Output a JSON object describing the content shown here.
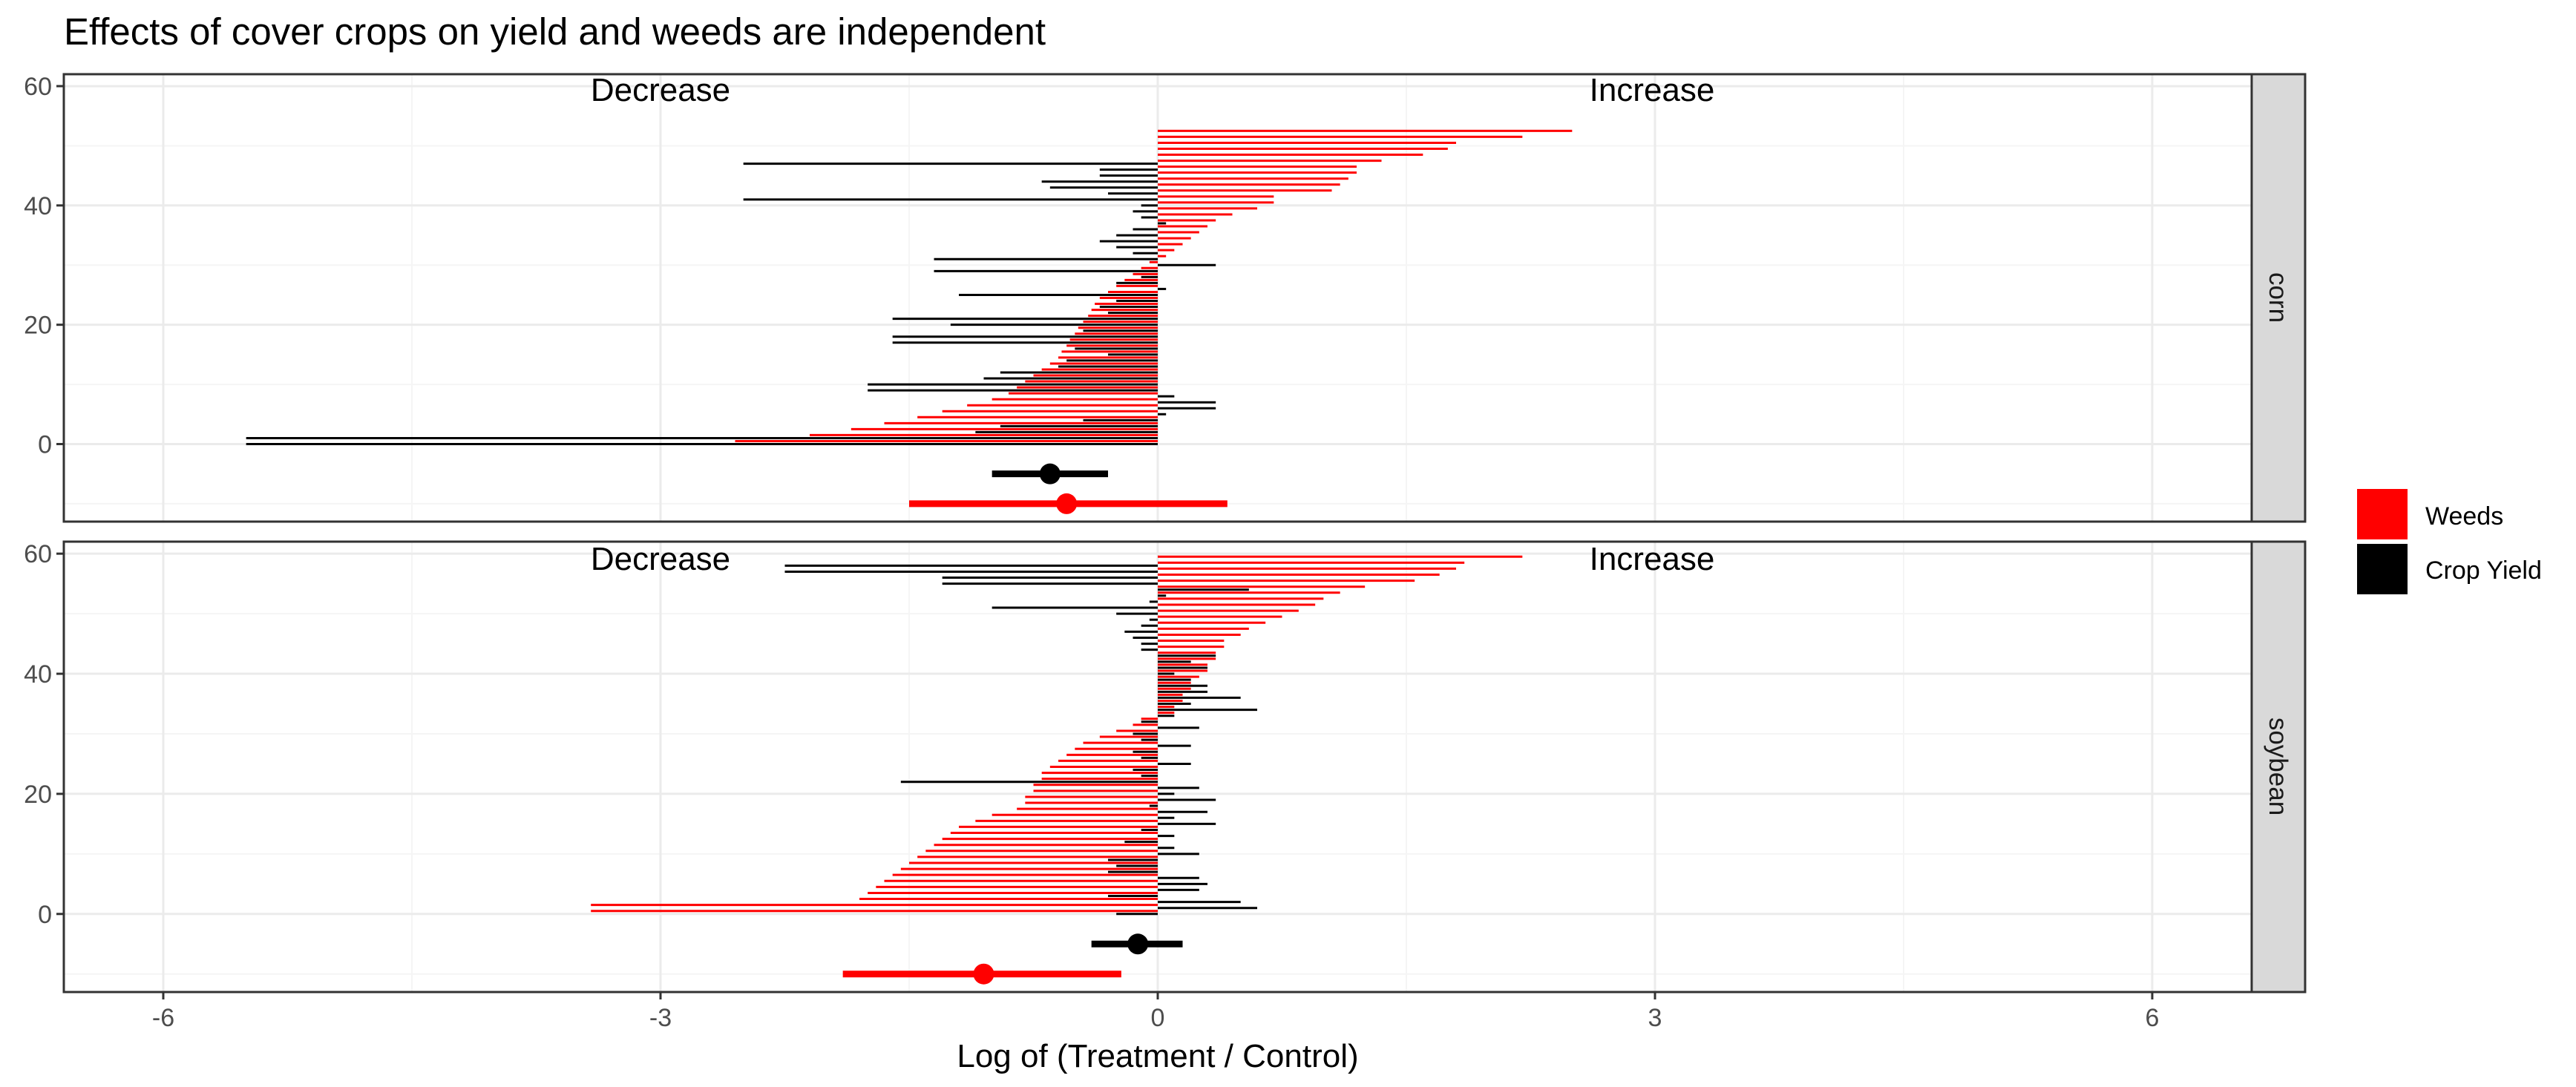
{
  "colors": {
    "weeds": "#ff0000",
    "yield": "#000000",
    "grid_major": "#ebebeb",
    "grid_minor": "#f5f5f5",
    "strip": "#d9d9d9",
    "border": "#333333"
  },
  "chart_data": {
    "type": "forest",
    "title": "Effects of cover crops on yield and weeds are independent",
    "xlabel": "Log of (Treatment / Control)",
    "ylabel": "",
    "xlim": [
      -6.6,
      6.6
    ],
    "x_ticks": [
      -6,
      -3,
      0,
      3,
      6
    ],
    "y_ticks": [
      0,
      20,
      40,
      60
    ],
    "annotations": {
      "left": "Decrease",
      "right": "Increase"
    },
    "legend": {
      "position": "right",
      "entries": [
        {
          "key": "weeds",
          "label": "Weeds"
        },
        {
          "key": "yield",
          "label": "Crop Yield"
        }
      ]
    },
    "panels": [
      {
        "name": "corn",
        "ylim": [
          -13,
          62
        ],
        "summary": {
          "yield": {
            "y": -5,
            "mean": -0.65,
            "lo": -1.0,
            "hi": -0.3
          },
          "weeds": {
            "y": -10,
            "mean": -0.55,
            "lo": -1.5,
            "hi": 0.42
          }
        },
        "weeds_values": [
          -2.55,
          -2.1,
          -1.85,
          -1.65,
          -1.45,
          -1.3,
          -1.15,
          -1.0,
          -0.9,
          -0.85,
          -0.8,
          -0.75,
          -0.7,
          -0.65,
          -0.6,
          -0.58,
          -0.55,
          -0.53,
          -0.5,
          -0.48,
          -0.45,
          -0.42,
          -0.4,
          -0.38,
          -0.35,
          -0.3,
          -0.25,
          -0.2,
          -0.15,
          -0.1,
          -0.05,
          0.05,
          0.1,
          0.15,
          0.2,
          0.25,
          0.3,
          0.35,
          0.45,
          0.6,
          0.7,
          0.7,
          1.05,
          1.1,
          1.15,
          1.2,
          1.2,
          1.35,
          1.6,
          1.75,
          1.8,
          2.2,
          2.5
        ],
        "yield_values": [
          -5.5,
          -5.5,
          -1.1,
          -0.95,
          -0.45,
          0.05,
          0.35,
          0.35,
          0.1,
          -1.75,
          -1.75,
          -1.05,
          -0.95,
          -0.6,
          -0.55,
          -0.3,
          -0.5,
          -1.6,
          -1.6,
          -0.45,
          -1.25,
          -1.6,
          -0.3,
          -0.35,
          -0.25,
          -1.2,
          0.05,
          -0.25,
          -0.1,
          -1.35,
          0.35,
          -1.35,
          -0.15,
          -0.25,
          -0.35,
          -0.25,
          -0.15,
          0.05,
          -0.1,
          -0.15,
          -0.1,
          -2.5,
          -0.3,
          -0.65,
          -0.7,
          -0.35,
          -0.35,
          -2.5
        ]
      },
      {
        "name": "soybean",
        "ylim": [
          -13,
          62
        ],
        "summary": {
          "yield": {
            "y": -5,
            "mean": -0.12,
            "lo": -0.4,
            "hi": 0.15
          },
          "weeds": {
            "y": -10,
            "mean": -1.05,
            "lo": -1.9,
            "hi": -0.22
          }
        },
        "weeds_values": [
          -3.42,
          -3.42,
          -1.8,
          -1.75,
          -1.7,
          -1.65,
          -1.6,
          -1.55,
          -1.5,
          -1.45,
          -1.4,
          -1.35,
          -1.3,
          -1.25,
          -1.2,
          -1.1,
          -1.0,
          -0.85,
          -0.8,
          -0.8,
          -0.75,
          -0.75,
          -0.7,
          -0.7,
          -0.65,
          -0.6,
          -0.55,
          -0.5,
          -0.45,
          -0.35,
          -0.25,
          -0.15,
          -0.1,
          0.1,
          0.1,
          0.15,
          0.15,
          0.2,
          0.2,
          0.25,
          0.3,
          0.3,
          0.35,
          0.35,
          0.4,
          0.4,
          0.5,
          0.55,
          0.65,
          0.75,
          0.85,
          0.95,
          1.0,
          1.1,
          1.25,
          1.55,
          1.7,
          1.8,
          1.85,
          2.2
        ],
        "yield_values": [
          -0.25,
          0.6,
          0.5,
          -0.3,
          0.25,
          0.3,
          0.25,
          -0.3,
          -0.25,
          -0.3,
          0.25,
          0.1,
          -0.2,
          0.1,
          -0.1,
          0.35,
          0.1,
          0.3,
          -0.05,
          0.35,
          0.1,
          0.25,
          -1.55,
          -0.1,
          -0.15,
          0.2,
          -0.1,
          -0.15,
          0.2,
          -0.1,
          -0.15,
          0.25,
          -0.1,
          0.1,
          0.6,
          0.2,
          0.5,
          0.3,
          0.3,
          0.2,
          0.1,
          0.3,
          0.2,
          0.35,
          -0.1,
          -0.1,
          -0.15,
          -0.2,
          -0.1,
          -0.05,
          -0.25,
          -1.0,
          -0.05,
          0.05,
          0.55,
          -1.3,
          -1.3,
          -2.25,
          -2.25
        ]
      }
    ]
  }
}
